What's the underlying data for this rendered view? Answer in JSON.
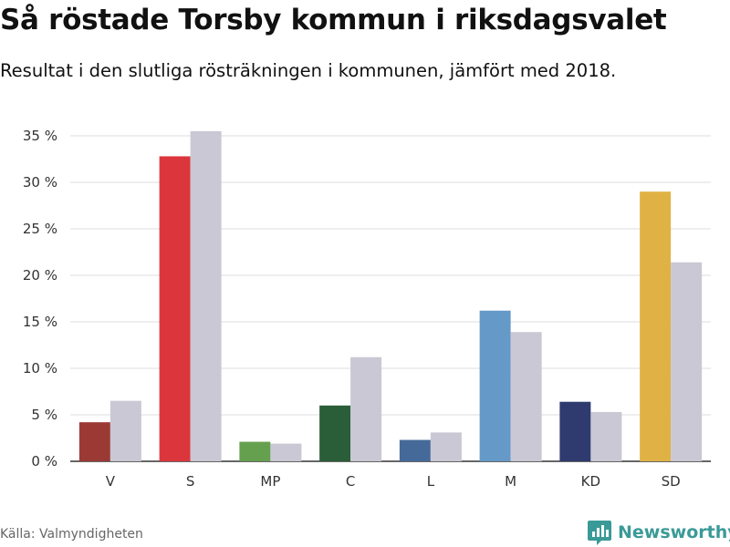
{
  "title": "Så röstade Torsby kommun i riksdagsvalet",
  "subtitle": "Resultat i den slutliga rösträkningen i kommunen, jämfört med 2018.",
  "source": "Källa: Valmyndigheten",
  "brand": {
    "name": "Newsworthy",
    "color": "#3a9a97",
    "icon": "newsworthy-logo-icon"
  },
  "chart_data": {
    "type": "bar",
    "categories": [
      "V",
      "S",
      "MP",
      "C",
      "L",
      "M",
      "KD",
      "SD"
    ],
    "series": [
      {
        "values": [
          4.2,
          32.8,
          2.1,
          6.0,
          2.3,
          16.2,
          6.4,
          29.0
        ],
        "colors": [
          "#9b3a35",
          "#dc363d",
          "#65a04f",
          "#2a5e38",
          "#456a99",
          "#6499c8",
          "#2f3b6f",
          "#e0b245"
        ]
      },
      {
        "values": [
          6.5,
          35.5,
          1.9,
          11.2,
          3.1,
          13.9,
          5.3,
          21.4
        ],
        "color": "#c9c8d4"
      }
    ],
    "yticks": [
      "0 %",
      "5 %",
      "10 %",
      "15 %",
      "20 %",
      "25 %",
      "30 %",
      "35 %"
    ],
    "ylim": [
      0,
      35
    ],
    "grid": true,
    "legend": "none"
  }
}
